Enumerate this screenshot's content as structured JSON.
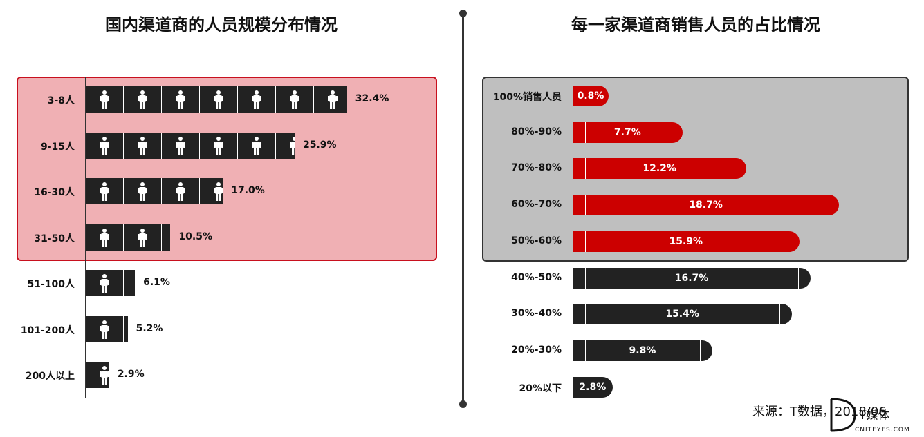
{
  "left_title": "国内渠道商的人员规模分布情况",
  "right_title": "每一家渠道商销售人员的占比情况",
  "source": "来源：T数据，2018/06",
  "logo_text": "T媒体 CNITEYES.COM",
  "chart_data": [
    {
      "type": "bar",
      "orientation": "horizontal",
      "title": "国内渠道商的人员规模分布情况",
      "categories": [
        "3-8人",
        "9-15人",
        "16-30人",
        "31-50人",
        "51-100人",
        "101-200人",
        "200人以上"
      ],
      "values": [
        32.4,
        25.9,
        17.0,
        10.5,
        6.1,
        5.2,
        2.9
      ],
      "value_labels": [
        "32.4%",
        "25.9%",
        "17.0%",
        "10.5%",
        "6.1%",
        "5.2%",
        "2.9%"
      ],
      "highlighted_categories": [
        "3-8人",
        "9-15人",
        "16-30人",
        "31-50人"
      ],
      "bar_style": "pictograph-person",
      "bar_color": "#222222",
      "highlight_color": "#f0b0b4",
      "highlight_border_color": "#c8101e"
    },
    {
      "type": "bar",
      "orientation": "horizontal",
      "title": "每一家渠道商销售人员的占比情况",
      "categories": [
        "100%销售人员",
        "80%-90%",
        "70%-80%",
        "60%-70%",
        "50%-60%",
        "40%-50%",
        "30%-40%",
        "20%-30%",
        "20%以下"
      ],
      "values": [
        0.8,
        7.7,
        12.2,
        18.7,
        15.9,
        16.7,
        15.4,
        9.8,
        2.8
      ],
      "value_labels": [
        "0.8%",
        "7.7%",
        "12.2%",
        "18.7%",
        "15.9%",
        "16.7%",
        "15.4%",
        "9.8%",
        "2.8%"
      ],
      "highlighted_categories": [
        "100%销售人员",
        "80%-90%",
        "70%-80%",
        "60%-70%",
        "50%-60%"
      ],
      "highlight_bar_color": "#cc0000",
      "bar_color": "#222222",
      "highlight_color": "#bfbfbf",
      "highlight_border_color": "#333333"
    }
  ]
}
